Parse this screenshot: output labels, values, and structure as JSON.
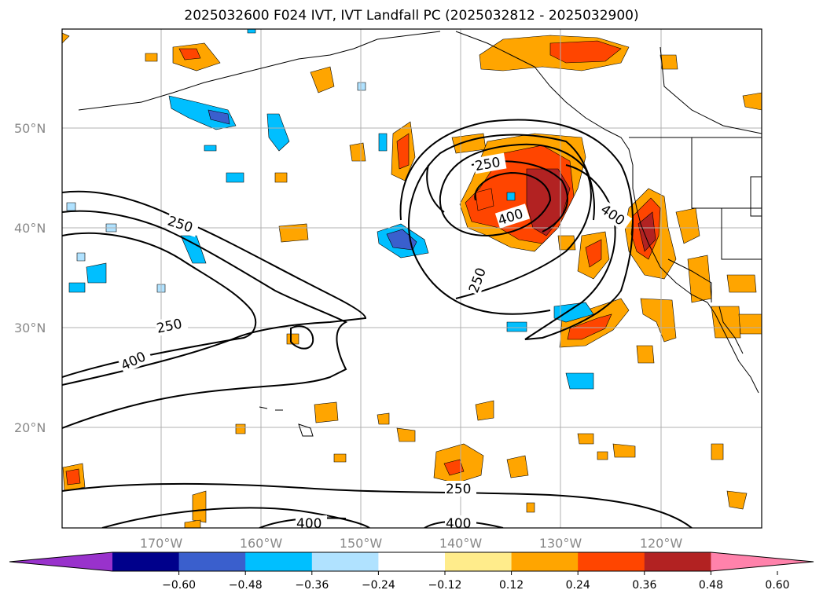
{
  "title": "2025032600 F024 IVT, IVT Landfall PC (2025032812 - 2025032900)",
  "lat_labels": [
    "50°N",
    "40°N",
    "30°N",
    "20°N"
  ],
  "lon_labels": [
    "170°W",
    "160°W",
    "150°W",
    "140°W",
    "130°W",
    "120°W"
  ],
  "contour_labels": [
    "250",
    "250",
    "250",
    "400",
    "250",
    "250",
    "400",
    "400",
    "400",
    "400"
  ],
  "colorbar": {
    "ticks": [
      "−0.60",
      "−0.48",
      "−0.36",
      "−0.24",
      "−0.12",
      "0.12",
      "0.24",
      "0.36",
      "0.48",
      "0.60"
    ],
    "colors": [
      "#9932cc",
      "#00008b",
      "#3a5fcd",
      "#00bfff",
      "#b0e2ff",
      "#ffffff",
      "#ffec8b",
      "#ffa500",
      "#ff4500",
      "#b22222",
      "#ff82ab"
    ]
  },
  "map": {
    "lat_range": [
      10,
      60
    ],
    "lon_range": [
      -180,
      -110
    ],
    "gridlines": true,
    "contour_levels": [
      250,
      400
    ]
  }
}
